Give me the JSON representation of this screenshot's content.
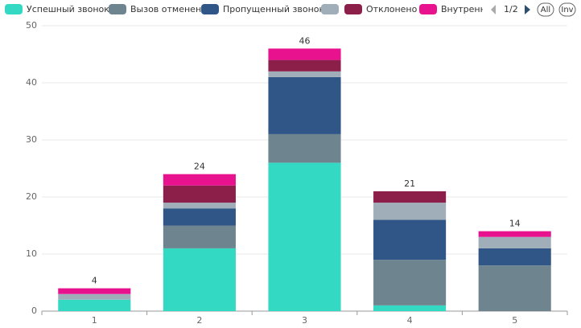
{
  "chart_data": {
    "type": "bar",
    "stacked": true,
    "categories": [
      "1",
      "2",
      "3",
      "4",
      "5"
    ],
    "series": [
      {
        "name": "Успешный звонок",
        "color": "#34d9c3",
        "values": [
          2,
          11,
          26,
          1,
          0
        ]
      },
      {
        "name": "Вызов отменен",
        "color": "#6e8590",
        "values": [
          0,
          4,
          5,
          8,
          8
        ]
      },
      {
        "name": "Пропущенный звонок",
        "color": "#2f5686",
        "values": [
          0,
          3,
          10,
          7,
          3
        ]
      },
      {
        "name": null,
        "color": "#a0aeb9",
        "values": [
          1,
          1,
          1,
          3,
          2
        ]
      },
      {
        "name": "Отклонено",
        "color": "#8b1f4a",
        "values": [
          0,
          3,
          2,
          2,
          0
        ]
      },
      {
        "name": "Внутренн",
        "color": "#e8128f",
        "values": [
          1,
          2,
          2,
          0,
          1
        ]
      }
    ],
    "totals": [
      4,
      24,
      46,
      21,
      14
    ],
    "ylim": [
      0,
      50
    ],
    "yticks": [
      0,
      10,
      20,
      30,
      40,
      50
    ],
    "grid": true,
    "legend": {
      "position": "top",
      "page": "1/2",
      "buttons": [
        "All",
        "Inv"
      ]
    }
  }
}
